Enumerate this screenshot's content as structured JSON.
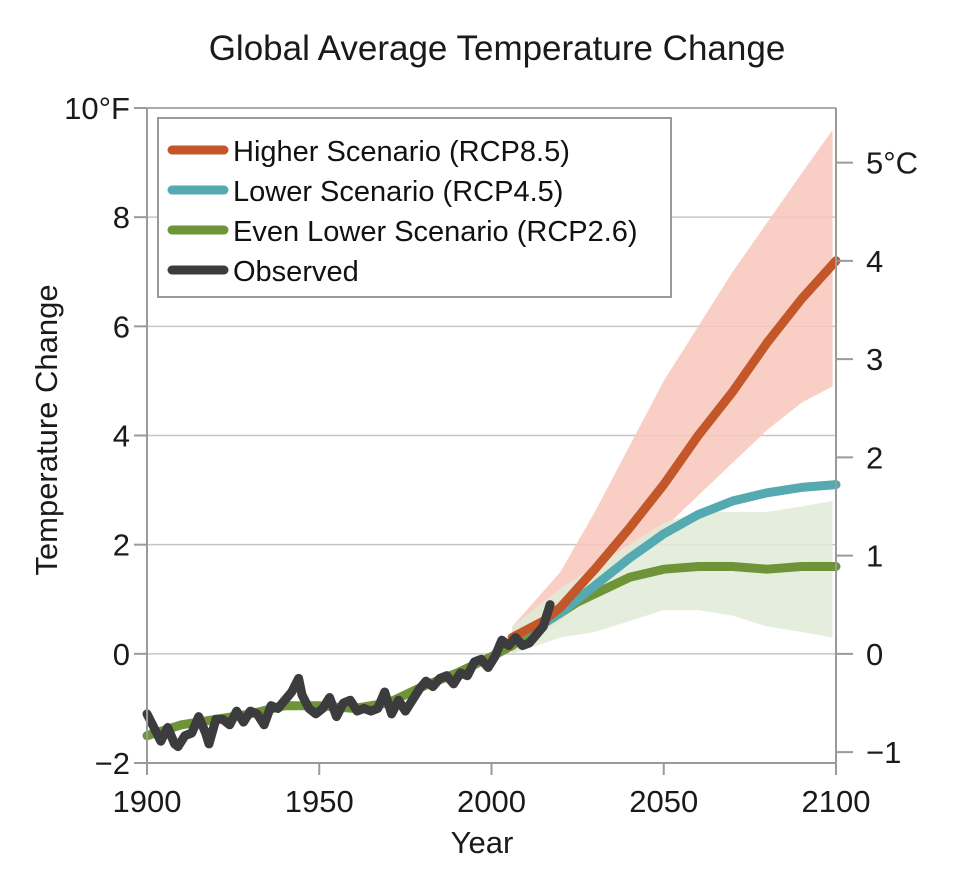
{
  "chart_data": {
    "type": "line",
    "title": "Global Average Temperature Change",
    "xlabel": "Year",
    "ylabel": "Temperature Change",
    "xlim": [
      1900,
      2100
    ],
    "ylim": [
      -2,
      10
    ],
    "y_unit": "°F",
    "y2_unit": "°C",
    "y2lim": [
      -1.11,
      5.56
    ],
    "x_ticks": [
      {
        "value": 1900,
        "label": "1900"
      },
      {
        "value": 1950,
        "label": "1950"
      },
      {
        "value": 2000,
        "label": "2000"
      },
      {
        "value": 2050,
        "label": "2050"
      },
      {
        "value": 2100,
        "label": "2100"
      }
    ],
    "y_ticks": [
      {
        "value": -2,
        "label": "−2"
      },
      {
        "value": 0,
        "label": "0"
      },
      {
        "value": 2,
        "label": "2"
      },
      {
        "value": 4,
        "label": "4"
      },
      {
        "value": 6,
        "label": "6"
      },
      {
        "value": 8,
        "label": "8"
      },
      {
        "value": 10,
        "label": "10°F"
      }
    ],
    "y2_ticks": [
      {
        "value": -1,
        "label": "−1"
      },
      {
        "value": 0,
        "label": "0"
      },
      {
        "value": 1,
        "label": "1"
      },
      {
        "value": 2,
        "label": "2"
      },
      {
        "value": 3,
        "label": "3"
      },
      {
        "value": 4,
        "label": "4"
      },
      {
        "value": 5,
        "label": "5°C"
      }
    ],
    "grid": true,
    "legend_position": "top-left",
    "legend": [
      {
        "name": "Higher Scenario (RCP8.5)",
        "color": "#c4572a"
      },
      {
        "name": "Lower Scenario (RCP4.5)",
        "color": "#55aab2"
      },
      {
        "name": "Even Lower Scenario (RCP2.6)",
        "color": "#6f9438"
      },
      {
        "name": "Observed",
        "color": "#3c3c3e"
      }
    ],
    "bands": [
      {
        "name": "RCP8.5 range",
        "color": "#f8c7bb",
        "x": [
          2006,
          2020,
          2030,
          2040,
          2050,
          2060,
          2070,
          2080,
          2090,
          2099
        ],
        "upper": [
          0.5,
          1.5,
          2.6,
          3.8,
          5.0,
          6.0,
          7.0,
          7.9,
          8.8,
          9.6
        ],
        "lower": [
          0.0,
          0.6,
          1.1,
          1.7,
          2.3,
          2.9,
          3.5,
          4.1,
          4.6,
          4.9
        ]
      },
      {
        "name": "RCP2.6 range",
        "color": "#e1ebd6",
        "x": [
          2006,
          2020,
          2030,
          2040,
          2050,
          2060,
          2070,
          2080,
          2090,
          2099
        ],
        "upper": [
          0.5,
          1.2,
          1.6,
          2.0,
          2.4,
          2.6,
          2.6,
          2.6,
          2.7,
          2.8
        ],
        "lower": [
          0.0,
          0.3,
          0.4,
          0.6,
          0.8,
          0.8,
          0.7,
          0.5,
          0.4,
          0.3
        ]
      }
    ],
    "series": [
      {
        "name": "Higher Scenario (RCP8.5)",
        "color": "#c4572a",
        "x": [
          2006,
          2015,
          2020,
          2025,
          2030,
          2040,
          2050,
          2060,
          2070,
          2080,
          2090,
          2100
        ],
        "values": [
          0.3,
          0.6,
          0.85,
          1.2,
          1.55,
          2.3,
          3.1,
          4.0,
          4.8,
          5.7,
          6.5,
          7.2
        ]
      },
      {
        "name": "Lower Scenario (RCP4.5)",
        "color": "#55aab2",
        "x": [
          2006,
          2015,
          2020,
          2025,
          2030,
          2040,
          2050,
          2060,
          2070,
          2080,
          2090,
          2100
        ],
        "values": [
          0.3,
          0.55,
          0.75,
          1.0,
          1.25,
          1.75,
          2.2,
          2.55,
          2.8,
          2.95,
          3.05,
          3.1
        ]
      },
      {
        "name": "Even Lower Scenario (RCP2.6)",
        "color": "#6f9438",
        "x": [
          1900,
          1910,
          1920,
          1930,
          1940,
          1950,
          1960,
          1970,
          1980,
          1990,
          2000,
          2006,
          2015,
          2020,
          2025,
          2030,
          2040,
          2050,
          2060,
          2070,
          2080,
          2090,
          2100
        ],
        "values": [
          -1.5,
          -1.3,
          -1.2,
          -1.1,
          -0.95,
          -0.95,
          -1.0,
          -0.9,
          -0.6,
          -0.35,
          -0.05,
          0.15,
          0.55,
          0.75,
          0.95,
          1.1,
          1.4,
          1.55,
          1.6,
          1.6,
          1.55,
          1.6,
          1.6
        ]
      },
      {
        "name": "Observed",
        "color": "#3c3c3e",
        "x": [
          1900,
          1902,
          1904,
          1906,
          1908,
          1909,
          1911,
          1913,
          1915,
          1917,
          1918,
          1920,
          1922,
          1924,
          1926,
          1928,
          1930,
          1932,
          1934,
          1936,
          1938,
          1940,
          1942,
          1944,
          1945,
          1947,
          1949,
          1951,
          1953,
          1955,
          1957,
          1959,
          1961,
          1963,
          1965,
          1967,
          1969,
          1971,
          1973,
          1975,
          1977,
          1979,
          1981,
          1983,
          1985,
          1987,
          1989,
          1991,
          1993,
          1995,
          1997,
          1999,
          2001,
          2003,
          2005,
          2007,
          2009,
          2011,
          2013,
          2015,
          2017
        ],
        "values": [
          -1.1,
          -1.35,
          -1.6,
          -1.35,
          -1.65,
          -1.7,
          -1.5,
          -1.45,
          -1.15,
          -1.45,
          -1.65,
          -1.2,
          -1.2,
          -1.3,
          -1.05,
          -1.25,
          -1.05,
          -1.1,
          -1.3,
          -0.95,
          -1.0,
          -0.85,
          -0.7,
          -0.45,
          -0.75,
          -1.0,
          -1.1,
          -1.0,
          -0.8,
          -1.15,
          -0.9,
          -0.85,
          -1.05,
          -1.0,
          -1.05,
          -1.0,
          -0.7,
          -1.1,
          -0.85,
          -1.05,
          -0.85,
          -0.65,
          -0.5,
          -0.6,
          -0.45,
          -0.4,
          -0.55,
          -0.35,
          -0.4,
          -0.15,
          -0.1,
          -0.25,
          -0.05,
          0.25,
          0.15,
          0.3,
          0.15,
          0.2,
          0.35,
          0.5,
          0.9
        ]
      }
    ]
  }
}
